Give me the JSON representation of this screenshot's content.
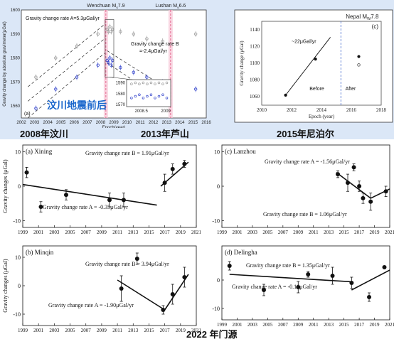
{
  "captions": {
    "chinese_overlay": "汶川地震前后",
    "wenchuan_caption": "2008年汶川",
    "lushan_caption": "2013年芦山",
    "nepal_caption": "2015年尼泊尔",
    "menyuan_caption": "2022 年门源"
  },
  "chart_data": [
    {
      "id": "panel-a-top",
      "type": "scatter",
      "panel_label": "(a)",
      "xlabel": "Epoch(year)",
      "ylabel": "Gravity change by absolute gravimeter(μGal)",
      "xlim": [
        2002,
        2016
      ],
      "ylim": [
        1555,
        1600
      ],
      "xticks": [
        2002,
        2003,
        2004,
        2005,
        2006,
        2007,
        2008,
        2009,
        2010,
        2011,
        2012,
        2013,
        2014,
        2015,
        2016
      ],
      "yticks": [
        1560,
        1570,
        1580,
        1590,
        1600
      ],
      "event_lines": [
        {
          "label": "Wenchuan M_s7.9",
          "x": 2008.4
        },
        {
          "label": "Lushan M_s6.6",
          "x": 2013.3
        }
      ],
      "annotations": [
        "Gravity change rate A=5.3μGal/yr",
        "Gravity change rate B",
        "=-2.4μGal/yr"
      ],
      "series": [
        {
          "name": "blue",
          "color": "#3344cc",
          "x": [
            2003.1,
            2004.6,
            2006.2,
            2007.8,
            2008.5,
            2008.6,
            2008.7,
            2008.8,
            2008.9,
            2009.5,
            2010.5,
            2011.5,
            2012.7,
            2015.2
          ],
          "y": [
            1559,
            1567,
            1572,
            1577,
            1579,
            1578,
            1580,
            1577,
            1579,
            1576,
            1574,
            1572,
            1570,
            1567
          ]
        },
        {
          "name": "gray",
          "color": "#999999",
          "x": [
            2003.1,
            2004.6,
            2006.2,
            2007.8,
            2008.5,
            2008.6,
            2008.7,
            2008.8,
            2008.9,
            2009.5,
            2010.5,
            2011.5,
            2012.7,
            2015.2
          ],
          "y": [
            1572,
            1580,
            1585,
            1590,
            1592,
            1591,
            1593,
            1591,
            1592,
            1591,
            1590,
            1588,
            1587,
            1590
          ]
        }
      ],
      "inset": {
        "xlim": [
          2008.2,
          2009.1
        ],
        "ylim": [
          1568,
          1593
        ],
        "yticks": [
          1570,
          1580,
          1590
        ],
        "xticks": [
          2008.5,
          2009
        ]
      }
    },
    {
      "id": "panel-c-nepal",
      "type": "scatter",
      "panel_label": "(c)",
      "title": "Nepal M_W7.8",
      "xlabel": "Epoch (year)",
      "ylabel": "Gravity change (μGal)",
      "xlim": [
        2010,
        2018
      ],
      "ylim": [
        1050,
        1150
      ],
      "xticks": [
        2010,
        2012,
        2014,
        2016,
        2018
      ],
      "yticks": [
        1060,
        1080,
        1100,
        1120,
        1140
      ],
      "event_line": 2015.3,
      "annotations": [
        "~22μGal/yr",
        "Before",
        "After"
      ],
      "points": [
        {
          "x": 2011.6,
          "y": 1062
        },
        {
          "x": 2013.6,
          "y": 1105
        },
        {
          "x": 2016.5,
          "y": 1108
        },
        {
          "x": 2016.5,
          "y": 1098
        }
      ],
      "trend": {
        "x": [
          2011.6,
          2014.6
        ],
        "y": [
          1062,
          1131
        ]
      }
    },
    {
      "id": "panel-xining",
      "type": "scatter",
      "panel_label": "(a) Xining",
      "ylabel": "Gravity changes (μGal)",
      "xlim": [
        1999,
        2021
      ],
      "ylim": [
        -12,
        12
      ],
      "yticks": [
        -10,
        0,
        10
      ],
      "xticks": [
        1999,
        2001,
        2003,
        2005,
        2007,
        2009,
        2011,
        2013,
        2015,
        2017,
        2019,
        2021
      ],
      "annotations": [
        "Gravity change rate B = 1.91μGal/yr",
        "Gravity change rate A = -0.35μGal/yr"
      ],
      "points": [
        {
          "x": 1999.5,
          "y": 4.0,
          "err": 1.5
        },
        {
          "x": 2001.3,
          "y": -6.0,
          "err": 1.5
        },
        {
          "x": 2004.5,
          "y": -2.5,
          "err": 1.5
        },
        {
          "x": 2010.0,
          "y": -4.0,
          "err": 2.0
        },
        {
          "x": 2011.8,
          "y": -4.0,
          "err": 2.0
        },
        {
          "x": 2017.0,
          "y": 1.0,
          "err": 2.5
        },
        {
          "x": 2018.0,
          "y": 5.0,
          "err": 1.5
        },
        {
          "x": 2019.5,
          "y": 6.5,
          "err": 1.0
        }
      ],
      "trends": [
        {
          "x": [
            1999,
            2016
          ],
          "y": [
            0.5,
            -5.5
          ]
        },
        {
          "x": [
            2016.5,
            2020
          ],
          "y": [
            0.0,
            7.0
          ]
        }
      ]
    },
    {
      "id": "panel-lanzhou",
      "type": "scatter",
      "panel_label": "(c) Lanzhou",
      "xlim": [
        1999,
        2021
      ],
      "ylim": [
        -12,
        12
      ],
      "yticks": [
        -10,
        0,
        10
      ],
      "xticks": [
        1999,
        2001,
        2003,
        2005,
        2007,
        2009,
        2011,
        2013,
        2015,
        2017,
        2019,
        2021
      ],
      "annotations": [
        "Gravity change rate A = -1.56μGal/yr",
        "Gravity change rate B = 1.06μGal/yr"
      ],
      "points": [
        {
          "x": 2014.2,
          "y": 3.5,
          "err": 1.0
        },
        {
          "x": 2015.5,
          "y": 1.0,
          "err": 2.5
        },
        {
          "x": 2016.3,
          "y": 5.5,
          "err": 1.0
        },
        {
          "x": 2017.0,
          "y": 0.0,
          "err": 1.5
        },
        {
          "x": 2017.5,
          "y": -3.5,
          "err": 1.5
        },
        {
          "x": 2018.5,
          "y": -4.5,
          "err": 2.5
        },
        {
          "x": 2020.5,
          "y": -1.5,
          "err": 1.5
        }
      ],
      "trends": [
        {
          "x": [
            2014,
            2018.5
          ],
          "y": [
            4.0,
            -3.5
          ]
        },
        {
          "x": [
            2018.5,
            2021
          ],
          "y": [
            -3.5,
            -0.8
          ]
        }
      ]
    },
    {
      "id": "panel-minqin",
      "type": "scatter",
      "panel_label": "(b) Minqin",
      "ylabel": "Gravity changes (μGal)",
      "xlim": [
        1999,
        2021
      ],
      "ylim": [
        -14,
        14
      ],
      "yticks": [
        -10,
        0,
        10
      ],
      "xticks": [
        1999,
        2001,
        2003,
        2005,
        2007,
        2009,
        2011,
        2013,
        2015,
        2017,
        2019,
        2021
      ],
      "annotations": [
        "Gravity change rate B = 3.94μGal/yr",
        "Gravity change rate A = -1.90μGal/yr"
      ],
      "points": [
        {
          "x": 2011.5,
          "y": -1.0,
          "err": 4.5
        },
        {
          "x": 2013.5,
          "y": 9.5,
          "err": 2.0
        },
        {
          "x": 2016.8,
          "y": -8.5,
          "err": 1.5
        },
        {
          "x": 2018.0,
          "y": -3.0,
          "err": 3.5
        },
        {
          "x": 2019.5,
          "y": 3.0,
          "err": 3.5
        }
      ],
      "trends": [
        {
          "x": [
            2011,
            2017
          ],
          "y": [
            2.0,
            -8.5
          ]
        },
        {
          "x": [
            2017,
            2020
          ],
          "y": [
            -8.5,
            4.0
          ]
        }
      ]
    },
    {
      "id": "panel-delingha",
      "type": "scatter",
      "panel_label": "(d) Delingha",
      "xlim": [
        1999,
        2021
      ],
      "ylim": [
        -14,
        12
      ],
      "yticks": [
        -10,
        0
      ],
      "xticks": [
        1999,
        2001,
        2003,
        2005,
        2007,
        2009,
        2011,
        2013,
        2015,
        2017,
        2019,
        2021
      ],
      "annotations": [
        "Gravity change rate B = 1.35μGal/yr",
        "Gravity change rate A = -0.16μGal/yr"
      ],
      "points": [
        {
          "x": 2000.0,
          "y": 5.0,
          "err": 1.5
        },
        {
          "x": 2004.5,
          "y": -3.5,
          "err": 2.0
        },
        {
          "x": 2009.0,
          "y": -2.5,
          "err": 2.0
        },
        {
          "x": 2010.3,
          "y": 2.0,
          "err": 1.0
        },
        {
          "x": 2013.5,
          "y": 1.5,
          "err": 3.0
        },
        {
          "x": 2016.0,
          "y": -1.0,
          "err": 2.0
        },
        {
          "x": 2018.3,
          "y": -6.0,
          "err": 1.5
        },
        {
          "x": 2020.3,
          "y": 4.5,
          "err": 0.5
        }
      ],
      "trends": [
        {
          "x": [
            2000,
            2016
          ],
          "y": [
            2.0,
            -0.6
          ]
        },
        {
          "x": [
            2016,
            2021
          ],
          "y": [
            -3.5,
            3.5
          ]
        }
      ]
    }
  ]
}
